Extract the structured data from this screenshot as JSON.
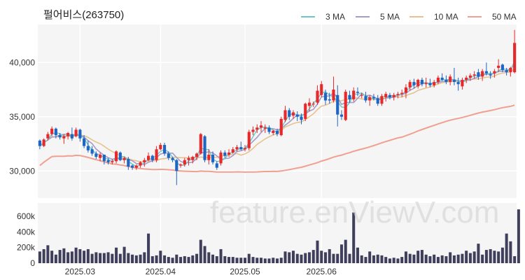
{
  "chart_data": {
    "type": "candlestick",
    "title": "펄어비스(263750)",
    "watermark": "feature.enViewV.com",
    "legend": [
      {
        "name": "3 MA",
        "color": "#6cc8c8"
      },
      {
        "name": "5 MA",
        "color": "#a79cc7"
      },
      {
        "name": "10 MA",
        "color": "#e8c28e"
      },
      {
        "name": "50 MA",
        "color": "#f0a090"
      }
    ],
    "colors": {
      "up": "#e8292c",
      "down": "#1f66c4",
      "volume": "#3f3f5c"
    },
    "price_axis": {
      "ylim": [
        27500,
        43500
      ],
      "ticks": [
        30000,
        35000,
        40000
      ],
      "tick_labels": [
        "30,000",
        "35,000",
        "40,000"
      ]
    },
    "volume_axis": {
      "ylim": [
        0,
        700000
      ],
      "ticks": [
        0,
        200000,
        400000,
        600000
      ],
      "tick_labels": [
        "0",
        "200k",
        "400k",
        "600k"
      ]
    },
    "x_ticks": [
      {
        "index": 10,
        "label": "2025.03"
      },
      {
        "index": 30,
        "label": "2025.04"
      },
      {
        "index": 51,
        "label": "2025.05"
      },
      {
        "index": 70,
        "label": "2025.06"
      }
    ],
    "ohlc": [
      [
        32800,
        32900,
        32000,
        32300
      ],
      [
        32300,
        33000,
        32200,
        32900
      ],
      [
        33000,
        33600,
        32800,
        33400
      ],
      [
        33400,
        34100,
        33200,
        33900
      ],
      [
        33900,
        34000,
        33000,
        33300
      ],
      [
        33300,
        33500,
        32900,
        33100
      ],
      [
        33000,
        33400,
        32500,
        33200
      ],
      [
        33200,
        33600,
        32900,
        33500
      ],
      [
        33400,
        34000,
        32800,
        33000
      ],
      [
        33200,
        34000,
        33100,
        33800
      ],
      [
        33800,
        33900,
        32700,
        33000
      ],
      [
        33000,
        33300,
        32100,
        32300
      ],
      [
        32300,
        32800,
        31700,
        31900
      ],
      [
        32000,
        32300,
        31400,
        31600
      ],
      [
        31600,
        31800,
        31100,
        31300
      ],
      [
        31200,
        31700,
        30900,
        31500
      ],
      [
        31500,
        31500,
        30600,
        30900
      ],
      [
        31000,
        31200,
        30600,
        30800
      ],
      [
        30800,
        31100,
        30600,
        30900
      ],
      [
        30900,
        31900,
        30700,
        31800
      ],
      [
        31700,
        31800,
        30900,
        31000
      ],
      [
        31000,
        31300,
        30700,
        31200
      ],
      [
        31100,
        31300,
        30100,
        30400
      ],
      [
        30500,
        30600,
        30100,
        30300
      ],
      [
        30300,
        30600,
        30100,
        30500
      ],
      [
        30500,
        30900,
        30300,
        30800
      ],
      [
        30800,
        31200,
        30400,
        31000
      ],
      [
        31000,
        31700,
        30900,
        31400
      ],
      [
        31400,
        31500,
        30800,
        31000
      ],
      [
        31000,
        32300,
        30800,
        32000
      ],
      [
        32000,
        32600,
        31900,
        32400
      ],
      [
        32400,
        32600,
        31400,
        31600
      ],
      [
        31600,
        31800,
        31000,
        31200
      ],
      [
        31200,
        31300,
        30800,
        31000
      ],
      [
        31000,
        31100,
        28700,
        30000
      ],
      [
        30500,
        30700,
        30300,
        30600
      ],
      [
        30600,
        31200,
        30400,
        31000
      ],
      [
        31000,
        31400,
        30500,
        31200
      ],
      [
        31000,
        31400,
        30700,
        31300
      ],
      [
        31300,
        31700,
        31000,
        31600
      ],
      [
        31600,
        33500,
        31500,
        33400
      ],
      [
        33200,
        33300,
        30800,
        31000
      ],
      [
        31000,
        32000,
        30600,
        31500
      ],
      [
        31500,
        31800,
        30600,
        30800
      ],
      [
        30700,
        30900,
        30100,
        30300
      ],
      [
        30700,
        31900,
        30500,
        31700
      ],
      [
        31700,
        31900,
        31200,
        31400
      ],
      [
        31500,
        32000,
        31300,
        31700
      ],
      [
        31700,
        32200,
        31600,
        32000
      ],
      [
        32000,
        32400,
        31800,
        32200
      ],
      [
        32200,
        32700,
        31900,
        32000
      ],
      [
        32000,
        32400,
        31800,
        32100
      ],
      [
        32100,
        33800,
        31900,
        33600
      ],
      [
        33600,
        34100,
        33300,
        33800
      ],
      [
        33800,
        34300,
        33500,
        34000
      ],
      [
        34000,
        34600,
        33600,
        34200
      ],
      [
        33900,
        34300,
        33500,
        34000
      ],
      [
        34000,
        34200,
        33400,
        33600
      ],
      [
        33500,
        33800,
        33300,
        33700
      ],
      [
        33700,
        33900,
        33200,
        33400
      ],
      [
        33300,
        35000,
        33200,
        34800
      ],
      [
        34700,
        36000,
        34500,
        35600
      ],
      [
        35600,
        35800,
        34700,
        35000
      ],
      [
        35100,
        35600,
        34800,
        35400
      ],
      [
        35200,
        35500,
        34600,
        35000
      ],
      [
        35000,
        35300,
        34300,
        34700
      ],
      [
        34800,
        36300,
        34600,
        36200
      ],
      [
        36000,
        36700,
        35500,
        36300
      ],
      [
        36200,
        36400,
        35900,
        36200
      ],
      [
        36300,
        37900,
        36100,
        37400
      ],
      [
        37000,
        38300,
        36800,
        38000
      ],
      [
        37200,
        37500,
        36100,
        36500
      ],
      [
        36600,
        37200,
        36200,
        36500
      ],
      [
        36500,
        38700,
        36300,
        37500
      ],
      [
        37000,
        37900,
        34100,
        35200
      ],
      [
        35200,
        35600,
        34700,
        35000
      ],
      [
        34700,
        37500,
        34600,
        37300
      ],
      [
        37000,
        37400,
        36300,
        36600
      ],
      [
        36600,
        37700,
        36400,
        37400
      ],
      [
        37300,
        37700,
        36900,
        37200
      ],
      [
        37000,
        37200,
        36700,
        37000
      ],
      [
        36900,
        37300,
        36300,
        36500
      ],
      [
        36500,
        37000,
        36000,
        36800
      ],
      [
        36800,
        37100,
        36500,
        36700
      ],
      [
        36700,
        37000,
        36000,
        36200
      ],
      [
        36200,
        37100,
        36000,
        36900
      ],
      [
        36800,
        37300,
        36400,
        37100
      ],
      [
        37000,
        37200,
        36600,
        36800
      ],
      [
        36800,
        37200,
        36500,
        37000
      ],
      [
        37000,
        37300,
        36700,
        37100
      ],
      [
        37100,
        37500,
        36800,
        37200
      ],
      [
        37200,
        38000,
        36700,
        37700
      ],
      [
        37700,
        38400,
        37400,
        38200
      ],
      [
        38200,
        38500,
        37600,
        37900
      ],
      [
        37800,
        38500,
        37600,
        38400
      ],
      [
        38400,
        38600,
        37800,
        38000
      ],
      [
        38000,
        38600,
        37700,
        38100
      ],
      [
        38100,
        38500,
        37700,
        37900
      ],
      [
        37900,
        38400,
        37700,
        38200
      ],
      [
        38200,
        38800,
        38000,
        38600
      ],
      [
        38600,
        39000,
        38300,
        38400
      ],
      [
        38400,
        38800,
        38000,
        38200
      ],
      [
        38200,
        38900,
        37900,
        38700
      ],
      [
        38400,
        39500,
        37900,
        38200
      ],
      [
        38200,
        38600,
        37400,
        38000
      ],
      [
        37800,
        38600,
        37500,
        38400
      ],
      [
        38400,
        38800,
        38100,
        38600
      ],
      [
        38600,
        39000,
        38300,
        38800
      ],
      [
        38800,
        39200,
        38500,
        38900
      ],
      [
        39100,
        39400,
        38400,
        38700
      ],
      [
        38700,
        39400,
        38300,
        39200
      ],
      [
        39200,
        40000,
        38800,
        39000
      ],
      [
        38900,
        39200,
        38500,
        38800
      ],
      [
        39000,
        39400,
        38600,
        39200
      ],
      [
        39500,
        40300,
        39100,
        39700
      ],
      [
        39800,
        39900,
        39100,
        39300
      ],
      [
        39300,
        39500,
        38800,
        39100
      ],
      [
        39100,
        39600,
        38700,
        39500
      ],
      [
        39100,
        43000,
        39000,
        41800
      ]
    ],
    "volume": [
      150000,
      180000,
      230000,
      160000,
      110000,
      170000,
      190000,
      140000,
      150000,
      200000,
      180000,
      160000,
      180000,
      120000,
      140000,
      130000,
      130000,
      140000,
      120000,
      200000,
      120000,
      210000,
      130000,
      110000,
      100000,
      110000,
      140000,
      380000,
      90000,
      100000,
      160000,
      100000,
      80000,
      70000,
      110000,
      80000,
      90000,
      80000,
      100000,
      120000,
      300000,
      220000,
      140000,
      110000,
      90000,
      180000,
      90000,
      80000,
      80000,
      70000,
      70000,
      70000,
      120000,
      80000,
      70000,
      70000,
      60000,
      60000,
      70000,
      60000,
      70000,
      150000,
      140000,
      160000,
      120000,
      110000,
      130000,
      140000,
      170000,
      290000,
      160000,
      140000,
      180000,
      120000,
      120000,
      240000,
      300000,
      120000,
      650000,
      200000,
      100000,
      80000,
      150000,
      100000,
      110000,
      100000,
      80000,
      60000,
      70000,
      60000,
      80000,
      150000,
      120000,
      110000,
      160000,
      170000,
      110000,
      90000,
      110000,
      80000,
      100000,
      90000,
      140000,
      100000,
      110000,
      120000,
      160000,
      130000,
      150000,
      250000,
      110000,
      170000,
      180000,
      160000,
      150000,
      200000,
      380000,
      280000,
      90000,
      690000
    ]
  }
}
